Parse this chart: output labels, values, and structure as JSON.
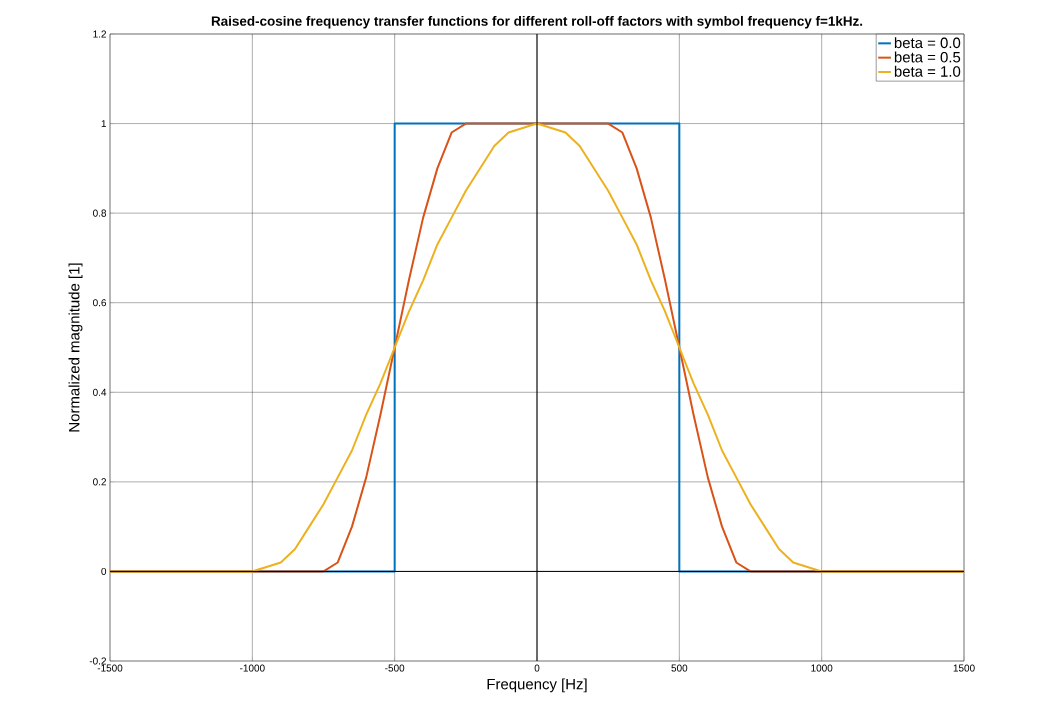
{
  "chart_data": {
    "type": "line",
    "title": "Raised-cosine frequency transfer functions for different roll-off factors with symbol frequency f=1kHz.",
    "xlabel": "Frequency [Hz]",
    "ylabel": "Normalized magnitude [1]",
    "xlim": [
      -1500,
      1500
    ],
    "ylim": [
      -0.2,
      1.2
    ],
    "xticks": [
      -1500,
      -1000,
      -500,
      0,
      500,
      1000,
      1500
    ],
    "yticks": [
      -0.2,
      0,
      0.2,
      0.4,
      0.6,
      0.8,
      1,
      1.2
    ],
    "grid": true,
    "legend": "top right",
    "marker": "none",
    "line_style": "solid",
    "series": [
      {
        "name": "beta = 0.0",
        "color": "#0072bd",
        "x": [
          -1500,
          -500,
          -500,
          500,
          500,
          1500
        ],
        "values": [
          0,
          0,
          1,
          1,
          0,
          0
        ]
      },
      {
        "name": "beta = 0.5",
        "color": "#d95319",
        "x": [
          -1500,
          -750,
          -700,
          -650,
          -600,
          -550,
          -500,
          -450,
          -400,
          -350,
          -300,
          -250,
          250,
          300,
          350,
          400,
          450,
          500,
          550,
          600,
          650,
          700,
          750,
          1500
        ],
        "values": [
          0,
          0,
          0.02,
          0.1,
          0.21,
          0.35,
          0.5,
          0.65,
          0.79,
          0.9,
          0.98,
          1,
          1,
          0.98,
          0.9,
          0.79,
          0.65,
          0.5,
          0.35,
          0.21,
          0.1,
          0.02,
          0,
          0
        ]
      },
      {
        "name": "beta = 1.0",
        "color": "#edb120",
        "x": [
          -1500,
          -1000,
          -950,
          -900,
          -850,
          -800,
          -750,
          -700,
          -650,
          -600,
          -550,
          -500,
          -450,
          -400,
          -350,
          -300,
          -250,
          -200,
          -150,
          -100,
          -50,
          0,
          50,
          100,
          150,
          200,
          250,
          300,
          350,
          400,
          450,
          500,
          550,
          600,
          650,
          700,
          750,
          800,
          850,
          900,
          950,
          1000,
          1500
        ],
        "values": [
          0,
          0,
          0.01,
          0.02,
          0.05,
          0.1,
          0.15,
          0.21,
          0.27,
          0.35,
          0.42,
          0.5,
          0.58,
          0.65,
          0.73,
          0.79,
          0.85,
          0.9,
          0.95,
          0.98,
          0.99,
          1,
          0.99,
          0.98,
          0.95,
          0.9,
          0.85,
          0.79,
          0.73,
          0.65,
          0.58,
          0.5,
          0.42,
          0.35,
          0.27,
          0.21,
          0.15,
          0.1,
          0.05,
          0.02,
          0.01,
          0,
          0
        ]
      },
      {
        "color": "#000000",
        "x": [
          0,
          0
        ],
        "values": [
          -0.2,
          1.2
        ]
      },
      {
        "color": "#000000",
        "x": [
          -1500,
          1500
        ],
        "values": [
          0,
          0
        ]
      }
    ]
  }
}
